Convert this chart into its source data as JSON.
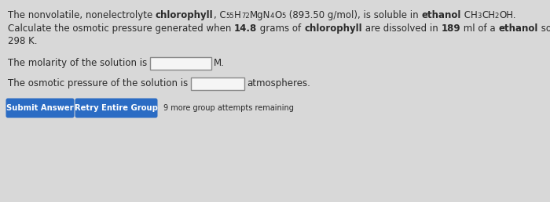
{
  "bg_color": "#d8d8d8",
  "text_color": "#2a2a2a",
  "font_size": 8.5,
  "btn_color": "#2b6cc4",
  "btn_text_color": "#ffffff",
  "attempts_text": "9 more group attempts remaining",
  "molarity_unit": "M.",
  "osmotic_unit": "atmospheres.",
  "btn1_text": "Submit Answer",
  "btn2_text": "Retry Entire Group"
}
